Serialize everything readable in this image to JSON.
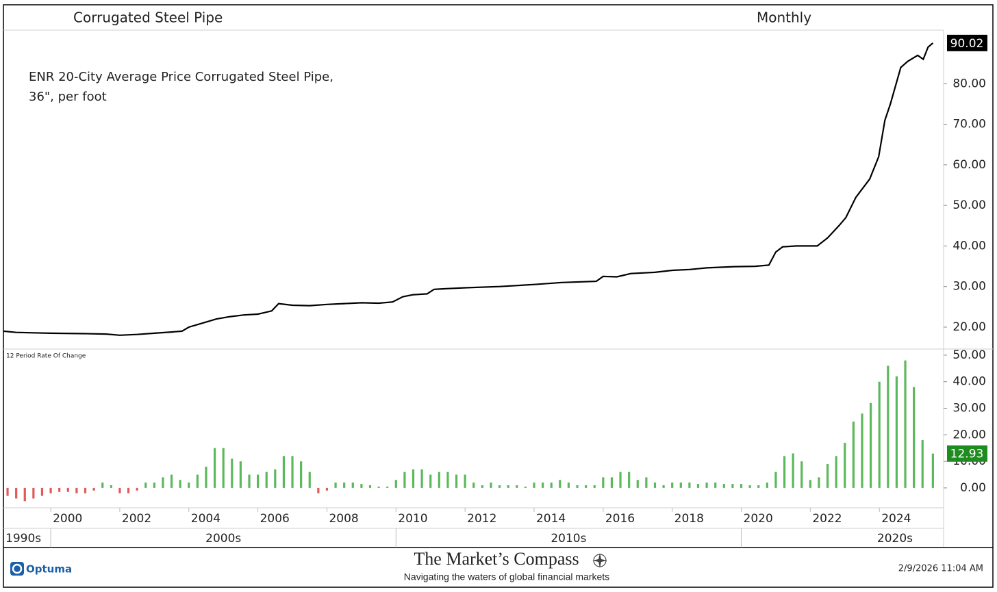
{
  "chart_data": [
    {
      "type": "line",
      "title": "Corrugated Steel Pipe",
      "subtitle": "Monthly",
      "annotation": [
        "ENR 20-City Average Price Corrugated Steel Pipe,",
        "36\", per foot"
      ],
      "color": "#000000",
      "label_box_color": "#000000",
      "xlim": [
        1998.63,
        2025.86
      ],
      "ylim": [
        14.6,
        93.2
      ],
      "yticks": [
        {
          "value": 20,
          "label": "20.00"
        },
        {
          "value": 30,
          "label": "30.00"
        },
        {
          "value": 40,
          "label": "40.00"
        },
        {
          "value": 50,
          "label": "50.00"
        },
        {
          "value": 60,
          "label": "60.00"
        },
        {
          "value": 70,
          "label": "70.00"
        },
        {
          "value": 80,
          "label": "80.00"
        }
      ],
      "x": [
        1998.63,
        1999.0,
        1999.5,
        2000.0,
        2001.0,
        2001.6,
        2002.0,
        2002.5,
        2003.0,
        2003.5,
        2003.8,
        2004.0,
        2004.4,
        2004.8,
        2005.2,
        2005.6,
        2006.0,
        2006.4,
        2006.6,
        2007.0,
        2007.5,
        2008.0,
        2008.5,
        2009.0,
        2009.5,
        2009.9,
        2010.2,
        2010.5,
        2010.9,
        2011.1,
        2011.5,
        2012.0,
        2013.0,
        2014.0,
        2014.8,
        2015.8,
        2016.0,
        2016.4,
        2016.8,
        2017.5,
        2018.0,
        2018.5,
        2019.0,
        2019.8,
        2020.4,
        2020.8,
        2021.0,
        2021.2,
        2021.6,
        2022.2,
        2022.5,
        2022.83,
        2023.03,
        2023.32,
        2023.72,
        2023.98,
        2024.16,
        2024.32,
        2024.62,
        2024.82,
        2025.11,
        2025.27,
        2025.41,
        2025.55
      ],
      "values": [
        19.0,
        18.7,
        18.6,
        18.5,
        18.4,
        18.3,
        18.0,
        18.2,
        18.5,
        18.8,
        19.0,
        20.0,
        21.0,
        22.0,
        22.6,
        23.0,
        23.2,
        24.0,
        25.8,
        25.4,
        25.3,
        25.6,
        25.8,
        26.0,
        25.9,
        26.2,
        27.5,
        28.0,
        28.2,
        29.3,
        29.5,
        29.7,
        30.0,
        30.5,
        31.0,
        31.3,
        32.5,
        32.4,
        33.2,
        33.5,
        34.0,
        34.2,
        34.6,
        34.9,
        35.0,
        35.3,
        38.5,
        39.8,
        40.0,
        40.0,
        42.0,
        45.0,
        47.0,
        52.0,
        56.5,
        62.0,
        71.0,
        75.0,
        84.0,
        85.5,
        87.0,
        86.0,
        89.0,
        90.02
      ]
    },
    {
      "type": "bar",
      "title": "12 Period Rate Of Change",
      "positive_color": "#5cb85c",
      "negative_color": "#e05a5a",
      "label_box_color": "#1e8c1e",
      "xlim": [
        1998.63,
        2025.86
      ],
      "ylim": [
        -7.5,
        52.3
      ],
      "yticks": [
        {
          "value": 0,
          "label": "0.00"
        },
        {
          "value": 10,
          "label": "10.00"
        },
        {
          "value": 20,
          "label": "20.00"
        },
        {
          "value": 30,
          "label": "30.00"
        },
        {
          "value": 40,
          "label": "40.00"
        },
        {
          "value": 50,
          "label": "50.00"
        }
      ],
      "xticks": [
        2000,
        2002,
        2004,
        2006,
        2008,
        2010,
        2012,
        2014,
        2016,
        2018,
        2020,
        2022,
        2024
      ],
      "decades": [
        {
          "value": 1990,
          "label": "1990s"
        },
        {
          "value": 2000,
          "label": "2000s"
        },
        {
          "value": 2010,
          "label": "2010s"
        },
        {
          "value": 2020,
          "label": "2020s"
        }
      ],
      "x": [
        1998.75,
        1999,
        1999.25,
        1999.5,
        1999.75,
        2000,
        2000.25,
        2000.5,
        2000.75,
        2001,
        2001.25,
        2001.5,
        2001.75,
        2002,
        2002.25,
        2002.5,
        2002.75,
        2003,
        2003.25,
        2003.5,
        2003.75,
        2004,
        2004.25,
        2004.5,
        2004.75,
        2005,
        2005.25,
        2005.5,
        2005.75,
        2006,
        2006.25,
        2006.5,
        2006.75,
        2007,
        2007.25,
        2007.5,
        2007.75,
        2008,
        2008.25,
        2008.5,
        2008.75,
        2009,
        2009.25,
        2009.5,
        2009.75,
        2010,
        2010.25,
        2010.5,
        2010.75,
        2011,
        2011.25,
        2011.5,
        2011.75,
        2012,
        2012.25,
        2012.5,
        2012.75,
        2013,
        2013.25,
        2013.5,
        2013.75,
        2014,
        2014.25,
        2014.5,
        2014.75,
        2015,
        2015.25,
        2015.5,
        2015.75,
        2016,
        2016.25,
        2016.5,
        2016.75,
        2017,
        2017.25,
        2017.5,
        2017.75,
        2018,
        2018.25,
        2018.5,
        2018.75,
        2019,
        2019.25,
        2019.5,
        2019.75,
        2020,
        2020.25,
        2020.5,
        2020.75,
        2021,
        2021.25,
        2021.5,
        2021.75,
        2022,
        2022.25,
        2022.5,
        2022.75,
        2023,
        2023.25,
        2023.5,
        2023.75,
        2024,
        2024.25,
        2024.5,
        2024.75,
        2025,
        2025.25,
        2025.55
      ],
      "values": [
        -3,
        -4,
        -5,
        -4,
        -3,
        -2,
        -1.5,
        -1.5,
        -2,
        -2,
        -1,
        2,
        1,
        -2,
        -2,
        -1,
        2,
        2,
        4,
        5,
        3,
        2,
        5,
        8,
        15,
        15,
        11,
        10,
        5,
        5,
        6,
        7,
        12,
        12,
        10,
        6,
        -2,
        -1,
        2,
        2,
        2,
        1.5,
        1,
        0.5,
        0.5,
        3,
        6,
        7,
        7,
        5,
        6,
        6,
        5,
        5,
        2,
        1,
        2,
        1,
        1,
        1,
        0.5,
        2,
        2,
        2,
        3,
        2,
        1,
        1,
        1,
        4,
        4,
        6,
        6,
        3,
        4,
        2,
        1,
        2,
        2,
        2,
        1.5,
        2,
        2,
        1.5,
        1.5,
        1.5,
        1,
        1,
        2,
        6,
        12,
        13,
        10,
        3,
        4,
        9,
        12,
        17,
        25,
        28,
        32,
        40,
        46,
        42,
        48,
        38,
        18,
        12.93
      ]
    }
  ],
  "footer": {
    "brand": "Optuma",
    "title": "The Market’s Compass",
    "tagline": "Navigating the waters of global financial markets",
    "timestamp": "2/9/2026 11:04 AM"
  }
}
